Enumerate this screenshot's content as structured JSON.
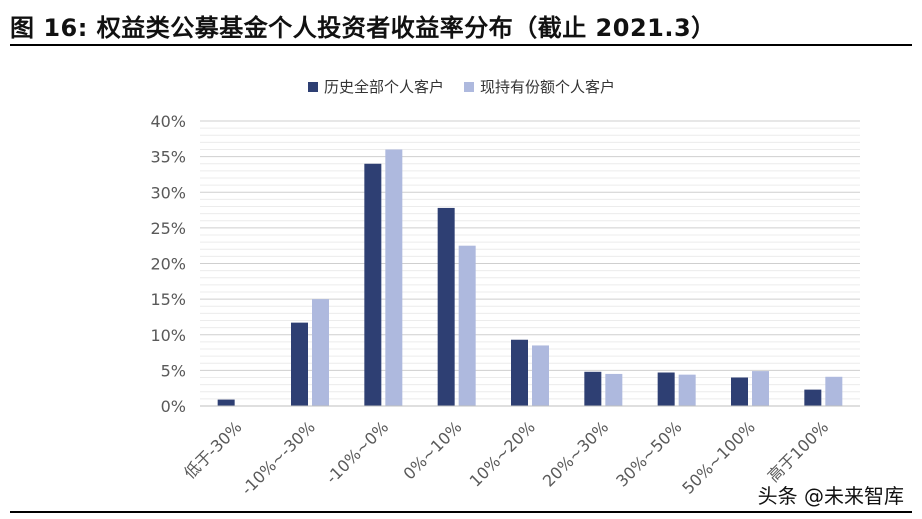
{
  "title": "图 16:  权益类公募基金个人投资者收益率分布（截止 2021.3）",
  "watermark": "头条 @未来智库",
  "colors": {
    "series1": "#2e3f73",
    "series2": "#aeb9de",
    "grid": "#d9d9d9",
    "tick": "#595959"
  },
  "chart_data": {
    "type": "bar",
    "categories": [
      "低于-30%",
      "-10%~-30%",
      "-10%~0%",
      "0%~10%",
      "10%~20%",
      "20%~30%",
      "30%~50%",
      "50%~100%",
      "高于100%"
    ],
    "series": [
      {
        "name": "历史全部个人客户",
        "values": [
          0.9,
          11.7,
          34.0,
          27.8,
          9.3,
          4.8,
          4.7,
          4.0,
          2.3
        ]
      },
      {
        "name": "现持有份额个人客户",
        "values": [
          0.0,
          15.0,
          36.0,
          22.5,
          8.5,
          4.5,
          4.4,
          4.9,
          4.1
        ]
      }
    ],
    "yticks": [
      "0%",
      "5%",
      "10%",
      "15%",
      "20%",
      "25%",
      "30%",
      "35%",
      "40%"
    ],
    "ylim": [
      0,
      40
    ],
    "grid": true,
    "legend": "top-center"
  }
}
